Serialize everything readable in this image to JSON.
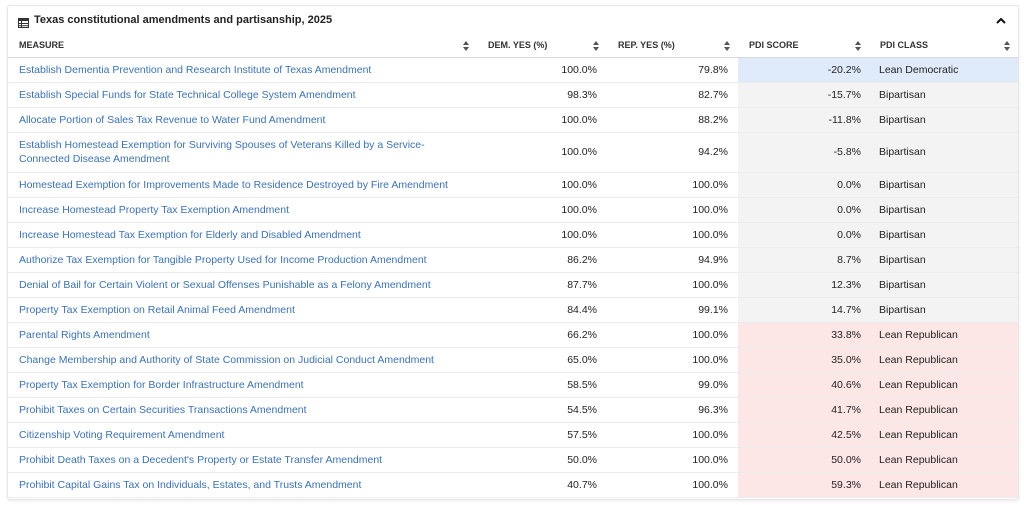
{
  "panel": {
    "title": "Texas constitutional amendments and partisanship, 2025",
    "icon": "table-icon",
    "collapse_icon": "chevron-up-icon"
  },
  "columns": [
    "MEASURE",
    "DEM. YES (%)",
    "REP. YES (%)",
    "PDI SCORE",
    "PDI CLASS"
  ],
  "colors": {
    "lean_democratic": "#dfeafa",
    "bipartisan": "#f3f3f3",
    "lean_republican": "#fce6e6",
    "link": "#3c72b0"
  },
  "rows": [
    {
      "measure": "Establish Dementia Prevention and Research Institute of Texas Amendment",
      "dem": "100.0%",
      "rep": "79.8%",
      "pdi": "-20.2%",
      "cls": "Lean Democratic"
    },
    {
      "measure": "Establish Special Funds for State Technical College System Amendment",
      "dem": "98.3%",
      "rep": "82.7%",
      "pdi": "-15.7%",
      "cls": "Bipartisan"
    },
    {
      "measure": "Allocate Portion of Sales Tax Revenue to Water Fund Amendment",
      "dem": "100.0%",
      "rep": "88.2%",
      "pdi": "-11.8%",
      "cls": "Bipartisan"
    },
    {
      "measure": "Establish Homestead Exemption for Surviving Spouses of Veterans Killed by a Service-Connected Disease Amendment",
      "dem": "100.0%",
      "rep": "94.2%",
      "pdi": "-5.8%",
      "cls": "Bipartisan"
    },
    {
      "measure": "Homestead Exemption for Improvements Made to Residence Destroyed by Fire Amendment",
      "dem": "100.0%",
      "rep": "100.0%",
      "pdi": "0.0%",
      "cls": "Bipartisan"
    },
    {
      "measure": "Increase Homestead Property Tax Exemption Amendment",
      "dem": "100.0%",
      "rep": "100.0%",
      "pdi": "0.0%",
      "cls": "Bipartisan"
    },
    {
      "measure": "Increase Homestead Tax Exemption for Elderly and Disabled Amendment",
      "dem": "100.0%",
      "rep": "100.0%",
      "pdi": "0.0%",
      "cls": "Bipartisan"
    },
    {
      "measure": "Authorize Tax Exemption for Tangible Property Used for Income Production Amendment",
      "dem": "86.2%",
      "rep": "94.9%",
      "pdi": "8.7%",
      "cls": "Bipartisan"
    },
    {
      "measure": "Denial of Bail for Certain Violent or Sexual Offenses Punishable as a Felony Amendment",
      "dem": "87.7%",
      "rep": "100.0%",
      "pdi": "12.3%",
      "cls": "Bipartisan"
    },
    {
      "measure": "Property Tax Exemption on Retail Animal Feed Amendment",
      "dem": "84.4%",
      "rep": "99.1%",
      "pdi": "14.7%",
      "cls": "Bipartisan"
    },
    {
      "measure": "Parental Rights Amendment",
      "dem": "66.2%",
      "rep": "100.0%",
      "pdi": "33.8%",
      "cls": "Lean Republican"
    },
    {
      "measure": "Change Membership and Authority of State Commission on Judicial Conduct Amendment",
      "dem": "65.0%",
      "rep": "100.0%",
      "pdi": "35.0%",
      "cls": "Lean Republican"
    },
    {
      "measure": "Property Tax Exemption for Border Infrastructure Amendment",
      "dem": "58.5%",
      "rep": "99.0%",
      "pdi": "40.6%",
      "cls": "Lean Republican"
    },
    {
      "measure": "Prohibit Taxes on Certain Securities Transactions Amendment",
      "dem": "54.5%",
      "rep": "96.3%",
      "pdi": "41.7%",
      "cls": "Lean Republican"
    },
    {
      "measure": "Citizenship Voting Requirement Amendment",
      "dem": "57.5%",
      "rep": "100.0%",
      "pdi": "42.5%",
      "cls": "Lean Republican"
    },
    {
      "measure": "Prohibit Death Taxes on a Decedent's Property or Estate Transfer Amendment",
      "dem": "50.0%",
      "rep": "100.0%",
      "pdi": "50.0%",
      "cls": "Lean Republican"
    },
    {
      "measure": "Prohibit Capital Gains Tax on Individuals, Estates, and Trusts Amendment",
      "dem": "40.7%",
      "rep": "100.0%",
      "pdi": "59.3%",
      "cls": "Lean Republican"
    }
  ]
}
